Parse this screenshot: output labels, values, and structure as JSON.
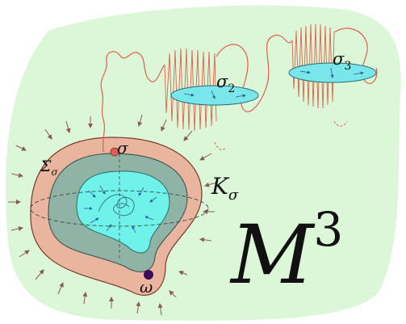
{
  "diagram": {
    "manifold": {
      "base": "M",
      "exponent": "3"
    },
    "labels": {
      "sigma": "σ",
      "sigma_2": {
        "base": "σ",
        "sub": "2"
      },
      "sigma_3": {
        "base": "σ",
        "sub": "3"
      },
      "Sigma_sigma": {
        "base": "Σ",
        "sub": "σ"
      },
      "K_sigma": {
        "base": "K",
        "sub": "σ"
      },
      "omega": "ω"
    }
  },
  "colors": {
    "background": "#dcf7d8",
    "outer_band": "#e9b59f",
    "middle_band": "#8fb3a5",
    "inner_core": "#6ff2ea",
    "curve": "#e0604a",
    "disk": "#79e6ea",
    "point_sigma": "#e25a5a",
    "point_omega": "#3b0a5a",
    "arrows": "#8a5a55"
  }
}
